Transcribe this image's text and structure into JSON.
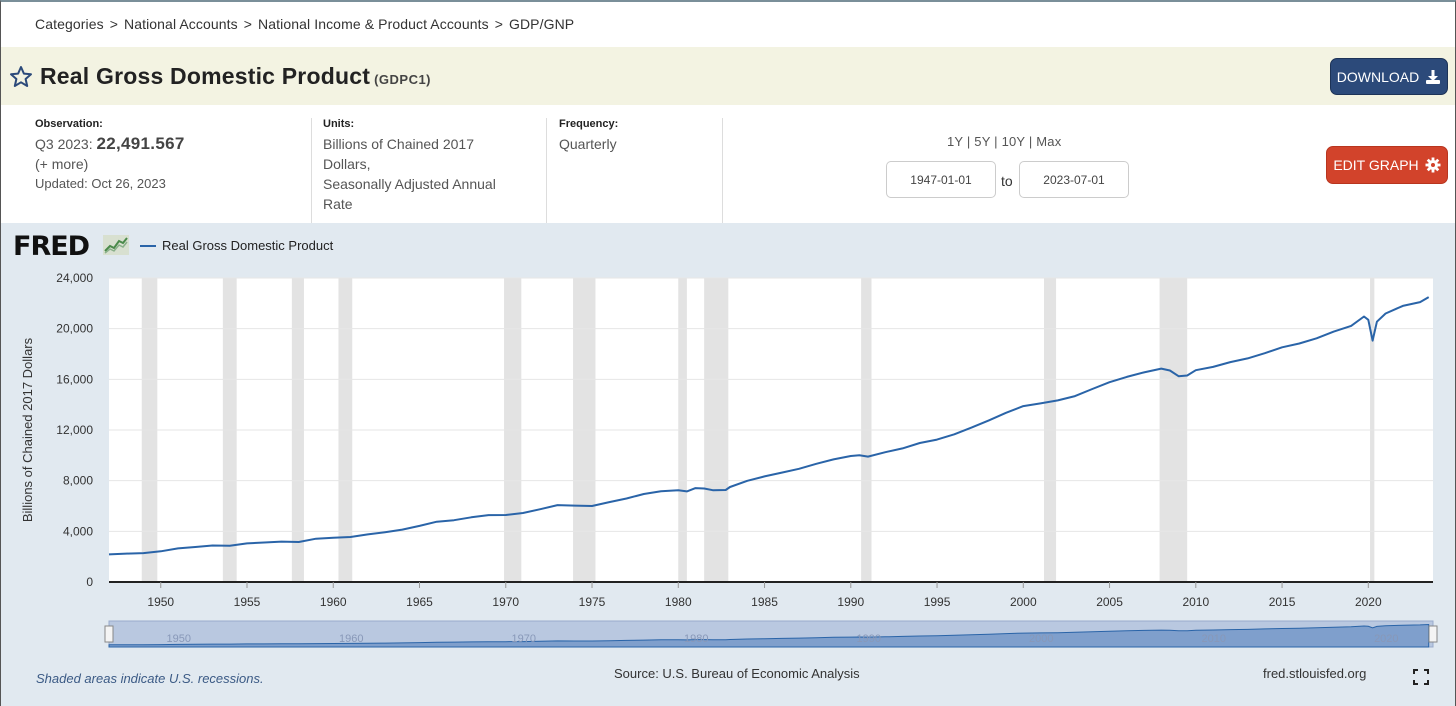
{
  "breadcrumb": [
    "Categories",
    "National Accounts",
    "National Income & Product Accounts",
    "GDP/GNP"
  ],
  "breadcrumb_sep": ">",
  "header": {
    "title": "Real Gross Domestic Product",
    "series_id": "(GDPC1)",
    "download_label": "DOWNLOAD",
    "star_icon": "star-outline-icon",
    "download_icon": "download-icon"
  },
  "meta": {
    "observation_label": "Observation:",
    "observation_period": "Q3 2023:",
    "observation_value": "22,491.567",
    "more_link": "(+ more)",
    "updated": "Updated: Oct 26, 2023",
    "units_label": "Units:",
    "units_line1": "Billions of Chained 2017",
    "units_line2": "Dollars,",
    "units_line3": "Seasonally Adjusted Annual",
    "units_line4": "Rate",
    "frequency_label": "Frequency:",
    "frequency_value": "Quarterly"
  },
  "range": {
    "links": [
      "1Y",
      "5Y",
      "10Y",
      "Max"
    ],
    "start_date": "1947-01-01",
    "to_label": "to",
    "end_date": "2023-07-01",
    "edit_label": "EDIT GRAPH",
    "edit_icon": "gear-icon"
  },
  "graph": {
    "logo": "FRED",
    "logo_icon": "fred-chart-icon",
    "legend_label": "Real Gross Domestic Product",
    "series_color": "#2a64a8",
    "recession_color": "#e3e3e3",
    "footer_note": "Shaded areas indicate U.S. recessions.",
    "source": "Source: U.S. Bureau of Economic Analysis",
    "site": "fred.stlouisfed.org",
    "fullscreen_icon": "fullscreen-icon"
  },
  "chart_data": {
    "type": "line",
    "title": "",
    "xlabel": "",
    "ylabel": "Billions of Chained 2017 Dollars",
    "ylim": [
      0,
      24000
    ],
    "xlim": [
      1947,
      2023.75
    ],
    "y_ticks": [
      "0",
      "4,000",
      "8,000",
      "12,000",
      "16,000",
      "20,000",
      "24,000"
    ],
    "y_tick_values": [
      0,
      4000,
      8000,
      12000,
      16000,
      20000,
      24000
    ],
    "x_ticks": [
      "1950",
      "1955",
      "1960",
      "1965",
      "1970",
      "1975",
      "1980",
      "1985",
      "1990",
      "1995",
      "2000",
      "2005",
      "2010",
      "2015",
      "2020"
    ],
    "x_tick_values": [
      1950,
      1955,
      1960,
      1965,
      1970,
      1975,
      1980,
      1985,
      1990,
      1995,
      2000,
      2005,
      2010,
      2015,
      2020
    ],
    "navigator_labels": [
      "1950",
      "1960",
      "1970",
      "1980",
      "1990",
      "2000",
      "2010",
      "2020"
    ],
    "navigator_values": [
      1950,
      1960,
      1970,
      1980,
      1990,
      2000,
      2010,
      2020
    ],
    "grid": true,
    "recessions": [
      [
        1948.9,
        1949.8
      ],
      [
        1953.6,
        1954.4
      ],
      [
        1957.6,
        1958.3
      ],
      [
        1960.3,
        1961.1
      ],
      [
        1969.9,
        1970.9
      ],
      [
        1973.9,
        1975.2
      ],
      [
        1980.0,
        1980.5
      ],
      [
        1981.5,
        1982.9
      ],
      [
        1990.6,
        1991.2
      ],
      [
        2001.2,
        2001.9
      ],
      [
        2007.9,
        2009.5
      ],
      [
        2020.1,
        2020.35
      ]
    ],
    "series": [
      {
        "name": "Real Gross Domestic Product",
        "x": [
          1947,
          1948,
          1949,
          1950,
          1951,
          1952,
          1953,
          1954,
          1955,
          1956,
          1957,
          1958,
          1959,
          1960,
          1961,
          1962,
          1963,
          1964,
          1965,
          1966,
          1967,
          1968,
          1969,
          1970,
          1971,
          1972,
          1973,
          1974,
          1975,
          1976,
          1977,
          1978,
          1979,
          1980,
          1980.5,
          1981,
          1981.5,
          1982,
          1982.75,
          1983,
          1984,
          1985,
          1986,
          1987,
          1988,
          1989,
          1990,
          1990.5,
          1991,
          1992,
          1993,
          1994,
          1995,
          1996,
          1997,
          1998,
          1999,
          2000,
          2001,
          2002,
          2003,
          2004,
          2005,
          2006,
          2007,
          2008,
          2008.5,
          2009,
          2009.5,
          2010,
          2011,
          2012,
          2013,
          2014,
          2015,
          2016,
          2017,
          2018,
          2019,
          2019.75,
          2020,
          2020.25,
          2020.5,
          2021,
          2022,
          2023,
          2023.5
        ],
        "values": [
          2180,
          2240,
          2280,
          2420,
          2650,
          2760,
          2880,
          2860,
          3050,
          3120,
          3190,
          3160,
          3420,
          3490,
          3550,
          3760,
          3930,
          4140,
          4430,
          4760,
          4880,
          5110,
          5280,
          5290,
          5450,
          5750,
          6070,
          6030,
          6000,
          6310,
          6590,
          6950,
          7160,
          7240,
          7150,
          7410,
          7380,
          7250,
          7260,
          7500,
          7990,
          8340,
          8640,
          8940,
          9330,
          9680,
          9950,
          10000,
          9900,
          10250,
          10550,
          10970,
          11240,
          11660,
          12190,
          12760,
          13360,
          13890,
          14100,
          14340,
          14680,
          15240,
          15770,
          16190,
          16550,
          16850,
          16700,
          16250,
          16300,
          16720,
          16980,
          17360,
          17650,
          18060,
          18530,
          18830,
          19240,
          19770,
          20220,
          20960,
          20700,
          19060,
          20550,
          21200,
          21800,
          22100,
          22491
        ]
      }
    ]
  }
}
